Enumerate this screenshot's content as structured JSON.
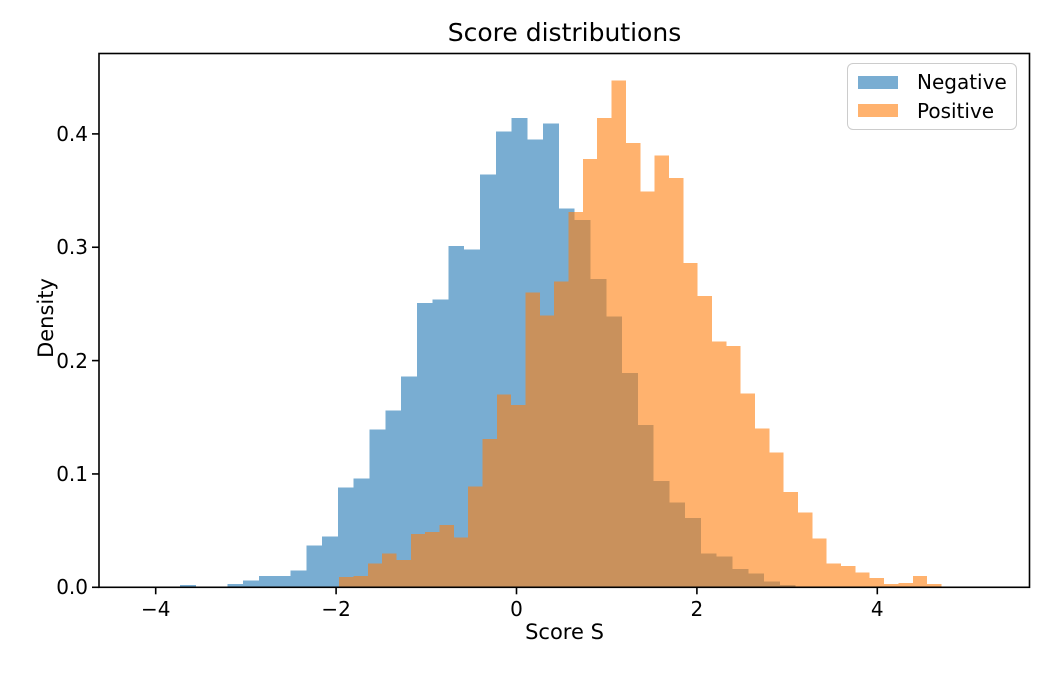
{
  "chart": {
    "title": "Score distributions",
    "xlabel": "Score S",
    "ylabel": "Density"
  },
  "legend": {
    "position": "upper right",
    "items": [
      {
        "label": "Negative",
        "color": "#1f77b4"
      },
      {
        "label": "Positive",
        "color": "#ff7f0e"
      }
    ]
  },
  "axes": {
    "x_tick_labels": [
      "−4",
      "−2",
      "0",
      "2",
      "4"
    ],
    "y_tick_labels": [
      "0.0",
      "0.1",
      "0.2",
      "0.3",
      "0.4"
    ],
    "spine_color": "#000000",
    "background": "#ffffff"
  },
  "chart_data": {
    "type": "bar",
    "subtype": "histogram-density",
    "title": "Score distributions",
    "xlabel": "Score S",
    "ylabel": "Density",
    "xlim": [
      -4.63,
      5.69
    ],
    "ylim": [
      0,
      0.471
    ],
    "x_ticks": [
      -4,
      -2,
      0,
      2,
      4
    ],
    "y_ticks": [
      0.0,
      0.1,
      0.2,
      0.3,
      0.4
    ],
    "grid": false,
    "legend_position": "upper right",
    "bar_alpha": 0.6,
    "series": [
      {
        "name": "Negative",
        "color": "#1f77b4",
        "blended_color_on_white": "#79add2",
        "bin_start": -3.73,
        "bin_width": 0.175,
        "densities": [
          0.002,
          0,
          0,
          0.003,
          0.006,
          0.01,
          0.01,
          0.015,
          0.037,
          0.045,
          0.088,
          0.096,
          0.139,
          0.156,
          0.186,
          0.251,
          0.254,
          0.301,
          0.298,
          0.364,
          0.402,
          0.414,
          0.395,
          0.409,
          0.334,
          0.324,
          0.272,
          0.239,
          0.189,
          0.143,
          0.094,
          0.075,
          0.061,
          0.03,
          0.027,
          0.016,
          0.012,
          0.005,
          0.002
        ]
      },
      {
        "name": "Positive",
        "color": "#ff7f0e",
        "blended_color_on_white": "#ffb26e",
        "bin_start": -1.967,
        "bin_width": 0.159,
        "densities": [
          0.009,
          0.01,
          0.021,
          0.03,
          0.024,
          0.047,
          0.049,
          0.055,
          0.044,
          0.089,
          0.131,
          0.17,
          0.161,
          0.26,
          0.24,
          0.27,
          0.331,
          0.378,
          0.414,
          0.447,
          0.392,
          0.349,
          0.381,
          0.361,
          0.286,
          0.257,
          0.217,
          0.213,
          0.171,
          0.14,
          0.119,
          0.084,
          0.066,
          0.043,
          0.021,
          0.019,
          0.013,
          0.008,
          0.003,
          0.004,
          0.01,
          0.003
        ]
      }
    ],
    "overlap_color_on_white": "#c9925c"
  }
}
